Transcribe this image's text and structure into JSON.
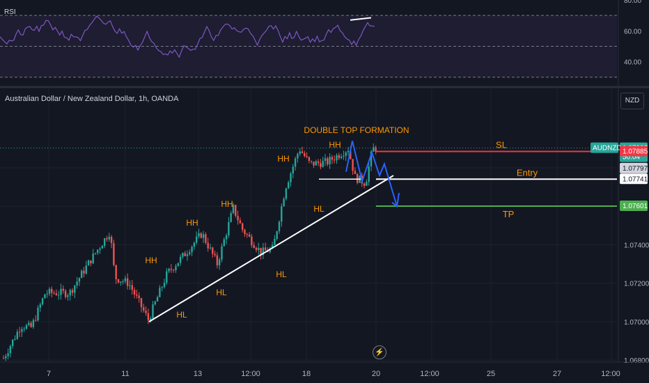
{
  "rsi": {
    "label": "RSI",
    "ticks": [
      "80.00",
      "60.00",
      "40.00"
    ],
    "levels": [
      70,
      50,
      30
    ],
    "range": [
      25,
      80
    ]
  },
  "header": {
    "title": "Australian Dollar / New Zealand Dollar, 1h, OANDA",
    "currency": "NZD"
  },
  "chart_data": {
    "type": "candlestick",
    "symbol": "AUDNZD",
    "timeframe": "1h",
    "broker": "OANDA",
    "x_tick_labels": [
      "7",
      "11",
      "13",
      "12:00",
      "18",
      "20",
      "12:00",
      "25",
      "27",
      "12:00"
    ],
    "y_tick_labels": [
      "1.07400",
      "1.07200",
      "1.07000",
      "1.06800"
    ],
    "y_range": [
      1.0679,
      1.0822
    ],
    "current_price": "1.07903",
    "countdown": "50:04",
    "price_markers": [
      {
        "value": "1.07885",
        "color": "#f23645",
        "label": "SL"
      },
      {
        "value": "1.07797",
        "color": "#d1d4dc",
        "label": ""
      },
      {
        "value": "1.07741",
        "color": "#ffffff",
        "label": "Entry"
      },
      {
        "value": "1.07601",
        "color": "#4caf50",
        "label": "TP"
      }
    ],
    "pattern_title": "DOUBLE TOP FORMATION",
    "annotations": [
      "HH",
      "HH",
      "HH",
      "HH",
      "HH",
      "HL",
      "HL",
      "HL",
      "HL"
    ],
    "colors": {
      "up": "#26a69a",
      "down": "#ef5350",
      "label": "#ff9800",
      "projection": "#2962ff"
    }
  },
  "footer": {
    "live_icon": "lightning-icon"
  }
}
